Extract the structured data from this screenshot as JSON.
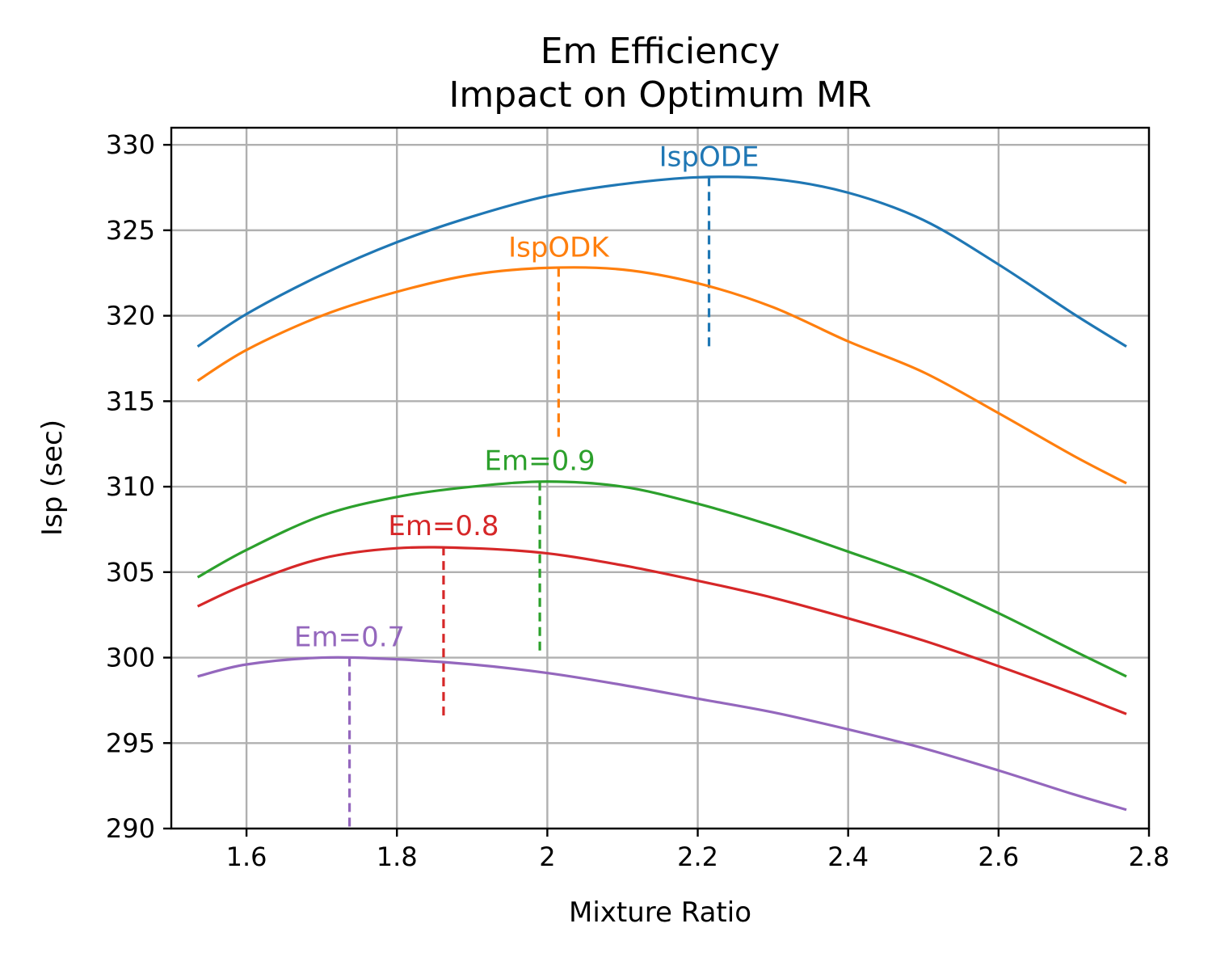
{
  "chart_data": {
    "type": "line",
    "title": "Em Efficiency",
    "subtitle": "Impact on Optimum MR",
    "xlabel": "Mixture Ratio",
    "ylabel": "Isp (sec)",
    "xlim": [
      1.5,
      2.8
    ],
    "ylim": [
      290,
      331
    ],
    "xticks": [
      1.6,
      1.8,
      2.0,
      2.2,
      2.4,
      2.6,
      2.8
    ],
    "xtick_labels": [
      "1.6",
      "1.8",
      "2",
      "2.2",
      "2.4",
      "2.6",
      "2.8"
    ],
    "yticks": [
      290,
      295,
      300,
      305,
      310,
      315,
      320,
      325,
      330
    ],
    "ytick_labels": [
      "290",
      "295",
      "300",
      "305",
      "310",
      "315",
      "320",
      "325",
      "330"
    ],
    "grid": true,
    "series": [
      {
        "name": "IspODE",
        "color": "#1f77b4",
        "x": [
          1.535,
          1.6,
          1.7,
          1.8,
          1.9,
          2.0,
          2.1,
          2.2,
          2.3,
          2.4,
          2.5,
          2.6,
          2.7,
          2.77
        ],
        "y": [
          318.2,
          320.1,
          322.4,
          324.3,
          325.8,
          327.0,
          327.7,
          328.1,
          328.0,
          327.2,
          325.6,
          323.0,
          320.1,
          318.2
        ],
        "optimum": {
          "x": 2.215,
          "y": 328.1,
          "bottom": 318.0
        }
      },
      {
        "name": "IspODK",
        "color": "#ff7f0e",
        "x": [
          1.535,
          1.6,
          1.7,
          1.8,
          1.9,
          2.0,
          2.1,
          2.2,
          2.3,
          2.4,
          2.5,
          2.6,
          2.7,
          2.77
        ],
        "y": [
          316.2,
          318.0,
          320.0,
          321.4,
          322.4,
          322.8,
          322.7,
          321.9,
          320.5,
          318.5,
          316.7,
          314.3,
          311.8,
          310.2
        ],
        "optimum": {
          "x": 2.015,
          "y": 322.8,
          "bottom": 312.8
        }
      },
      {
        "name": "Em=0.9",
        "color": "#2ca02c",
        "x": [
          1.535,
          1.6,
          1.7,
          1.8,
          1.9,
          2.0,
          2.1,
          2.2,
          2.3,
          2.4,
          2.5,
          2.6,
          2.7,
          2.77
        ],
        "y": [
          304.7,
          306.3,
          308.3,
          309.4,
          310.0,
          310.3,
          310.0,
          309.0,
          307.7,
          306.2,
          304.6,
          302.6,
          300.4,
          298.9
        ],
        "optimum": {
          "x": 1.99,
          "y": 310.3,
          "bottom": 300.3
        }
      },
      {
        "name": "Em=0.8",
        "color": "#d62728",
        "x": [
          1.535,
          1.6,
          1.7,
          1.8,
          1.9,
          2.0,
          2.1,
          2.2,
          2.3,
          2.4,
          2.5,
          2.6,
          2.7,
          2.77
        ],
        "y": [
          303.0,
          304.3,
          305.8,
          306.4,
          306.4,
          306.1,
          305.4,
          304.5,
          303.5,
          302.3,
          301.0,
          299.5,
          297.9,
          296.7
        ],
        "optimum": {
          "x": 1.862,
          "y": 306.5,
          "bottom": 296.5
        }
      },
      {
        "name": "Em=0.7",
        "color": "#9467bd",
        "x": [
          1.535,
          1.6,
          1.7,
          1.8,
          1.9,
          2.0,
          2.1,
          2.2,
          2.3,
          2.4,
          2.5,
          2.6,
          2.7,
          2.77
        ],
        "y": [
          298.9,
          299.6,
          300.0,
          299.9,
          299.6,
          299.1,
          298.4,
          297.6,
          296.8,
          295.8,
          294.7,
          293.4,
          292.0,
          291.1
        ],
        "optimum": {
          "x": 1.737,
          "y": 300.0,
          "bottom": 290.0
        }
      }
    ]
  }
}
